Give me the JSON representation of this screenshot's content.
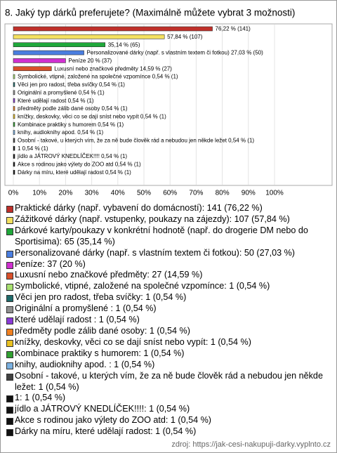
{
  "chart_data": {
    "type": "bar",
    "orientation": "horizontal",
    "title": "8. Jaký typ dárků preferujete? (Maximálně můžete vybrat 3 možnosti)",
    "categories": [
      "Praktické dárky (např. vybavení do domácností): 141 (76,22 %)",
      "Zážitkové dárky (např. vstupenky, poukazy na zájezdy): 107 (57,84 %)",
      "Dárkové karty/poukazy v konkrétní hodnotě (např. do drogerie DM nebo do Sportisima): 65 (35,14 %)",
      "Personalizované dárky (např. s vlastním textem či fotkou): 50 (27,03 %)",
      "Peníze: 37 (20 %)",
      "Luxusní nebo značkové předměty: 27 (14,59 %)",
      "Symbolické, vtipné, založené na společné vzpomínce: 1 (0,54 %)",
      "Věci jen pro radost, třeba svíčky: 1 (0,54 %)",
      "Originální a promyšlené : 1 (0,54 %)",
      "Které udělají radost : 1 (0,54 %)",
      "předměty podle zálib dané osoby: 1 (0,54 %)",
      "knížky, deskovky, věci co se dají sníst nebo vypít: 1 (0,54 %)",
      "Kombinace praktiky s humorem: 1 (0,54 %)",
      "knihy, audioknihy apod. : 1 (0,54 %)",
      "Osobní - takové, u kterých vím, že za ně bude člověk rád a nebudou jen někde ležet: 1 (0,54 %)",
      "1: 1 (0,54 %)",
      "jídlo a JÁTROVÝ KNEDLÍČEK!!!!: 1 (0,54 %)",
      "Akce s rodinou jako výlety do ZOO atd: 1 (0,54 %)",
      "Dárky na míru, které udělají radost: 1 (0,54 %)"
    ],
    "values": [
      76.22,
      57.84,
      35.14,
      27.03,
      20,
      14.59,
      0.54,
      0.54,
      0.54,
      0.54,
      0.54,
      0.54,
      0.54,
      0.54,
      0.54,
      0.54,
      0.54,
      0.54,
      0.54
    ],
    "value_labels": [
      "76,22 % (141)",
      "57,84 % (107)",
      "35,14 % (65)",
      "Personalizované dárky (např. s vlastním textem či fotkou) 27,03 % (50)",
      "Peníze 20 % (37)",
      "Luxusní nebo značkové předměty 14,59 % (27)",
      "Symbolické, vtipné, založené na společné vzpomínce 0,54 % (1)",
      "Věci jen pro radost, třeba svíčky 0,54 % (1)",
      "Originální a promyšlené  0,54 % (1)",
      "Které udělají radost  0,54 % (1)",
      "předměty podle zálib dané osoby 0,54 % (1)",
      "knížky, deskovky, věci co se dají sníst nebo vypít 0,54 % (1)",
      "Kombinace praktiky s humorem 0,54 % (1)",
      "knihy, audioknihy apod.  0,54 % (1)",
      "Osobní - takové, u kterých vím, že za ně bude člověk rád a nebudou jen někde ležet 0,54 % (1)",
      "1 0,54 % (1)",
      "jídlo a JÁTROVÝ KNEDLÍČEK!!!! 0,54 % (1)",
      "Akce s rodinou jako výlety do ZOO atd 0,54 % (1)",
      "Dárky na míru, které udělají radost 0,54 % (1)"
    ],
    "colors": [
      "#c0302a",
      "#f3e060",
      "#1fa83a",
      "#4a7ee0",
      "#d030d0",
      "#d9502a",
      "#a8e070",
      "#1e6a6a",
      "#909090",
      "#8a3ad8",
      "#f08020",
      "#e8c020",
      "#30a030",
      "#7ab0e0",
      "#404040",
      "#111111",
      "#111111",
      "#111111",
      "#111111"
    ],
    "xlim": [
      0,
      100
    ],
    "xticks": [
      {
        "value": 0,
        "label": "0%"
      },
      {
        "value": 10,
        "label": "10%"
      },
      {
        "value": 20,
        "label": "20%"
      },
      {
        "value": 30,
        "label": "30%"
      },
      {
        "value": 40,
        "label": "40%"
      },
      {
        "value": 50,
        "label": "50%"
      },
      {
        "value": 60,
        "label": "60%"
      },
      {
        "value": 70,
        "label": "70%"
      },
      {
        "value": 80,
        "label": "80%"
      },
      {
        "value": 90,
        "label": "90%"
      },
      {
        "value": 100,
        "label": "100%"
      }
    ],
    "grid": true,
    "source": "zdroj: https://jak-cesi-nakupuji-darky.vyplnto.cz"
  }
}
